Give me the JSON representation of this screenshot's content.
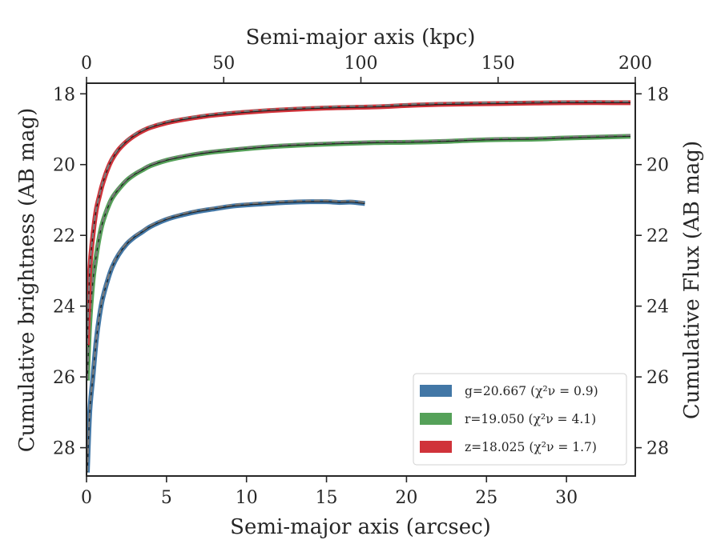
{
  "chart_data": {
    "type": "line",
    "xlabel": "Semi-major axis (arcsec)",
    "ylabel": "Cumulative brightness (AB mag)",
    "x2label": "Semi-major axis (kpc)",
    "y2label": "Cumulative Flux (AB mag)",
    "xlim": [
      0,
      34.3
    ],
    "ylim": [
      28.8,
      17.7
    ],
    "x2lim": [
      0,
      200
    ],
    "xticks": [
      "0",
      "5",
      "10",
      "15",
      "20",
      "25",
      "30"
    ],
    "xtick_values": [
      0,
      5,
      10,
      15,
      20,
      25,
      30
    ],
    "x2ticks": [
      "0",
      "50",
      "100",
      "150",
      "200"
    ],
    "x2tick_values": [
      0,
      50,
      100,
      150,
      200
    ],
    "yticks": [
      "18",
      "20",
      "22",
      "24",
      "26",
      "28"
    ],
    "ytick_values": [
      18,
      20,
      22,
      24,
      26,
      28
    ],
    "y_inverted": true,
    "grid": false,
    "legend_position": "bottom-right",
    "series": [
      {
        "name": "g=20.667",
        "chi_label": "(χ²ν = 0.9)",
        "color": "#4277a6",
        "x": [
          0.05,
          0.2,
          0.4,
          0.6,
          0.8,
          1.0,
          1.3,
          1.6,
          2.0,
          2.5,
          3.0,
          3.5,
          4.0,
          5.0,
          6.0,
          7.0,
          8.0,
          9.0,
          10.0,
          11.0,
          12.0,
          13.0,
          14.0,
          15.0,
          15.8,
          16.5,
          17.4
        ],
        "y": [
          28.7,
          27.0,
          26.0,
          25.0,
          24.3,
          23.8,
          23.3,
          22.9,
          22.55,
          22.25,
          22.05,
          21.9,
          21.75,
          21.55,
          21.42,
          21.32,
          21.25,
          21.18,
          21.14,
          21.11,
          21.08,
          21.06,
          21.05,
          21.05,
          21.07,
          21.06,
          21.1
        ]
      },
      {
        "name": "r=19.050",
        "chi_label": "(χ²ν = 4.1)",
        "color": "#55a159",
        "x": [
          0.05,
          0.2,
          0.4,
          0.6,
          0.8,
          1.0,
          1.3,
          1.6,
          2.0,
          2.5,
          3.0,
          3.5,
          4.0,
          5.0,
          6.0,
          7.0,
          8.0,
          10.0,
          12.0,
          15.0,
          18.0,
          20.0,
          22.0,
          25.0,
          28.0,
          30.0,
          34.0
        ],
        "y": [
          26.1,
          24.5,
          23.3,
          22.6,
          22.05,
          21.65,
          21.25,
          20.95,
          20.7,
          20.45,
          20.28,
          20.15,
          20.03,
          19.88,
          19.78,
          19.7,
          19.64,
          19.55,
          19.48,
          19.42,
          19.38,
          19.37,
          19.35,
          19.3,
          19.28,
          19.25,
          19.2
        ]
      },
      {
        "name": "z=18.025",
        "chi_label": "(χ²ν = 1.7)",
        "color": "#d0333a",
        "x": [
          0.05,
          0.2,
          0.4,
          0.6,
          0.8,
          1.0,
          1.3,
          1.6,
          2.0,
          2.5,
          3.0,
          3.5,
          4.0,
          5.0,
          6.0,
          7.0,
          8.0,
          10.0,
          12.0,
          15.0,
          18.0,
          20.0,
          22.0,
          25.0,
          28.0,
          30.0,
          34.0
        ],
        "y": [
          25.1,
          23.0,
          22.0,
          21.3,
          20.9,
          20.55,
          20.15,
          19.85,
          19.58,
          19.35,
          19.18,
          19.05,
          18.95,
          18.82,
          18.73,
          18.66,
          18.6,
          18.52,
          18.46,
          18.4,
          18.37,
          18.33,
          18.3,
          18.28,
          18.26,
          18.25,
          18.25
        ]
      }
    ]
  }
}
